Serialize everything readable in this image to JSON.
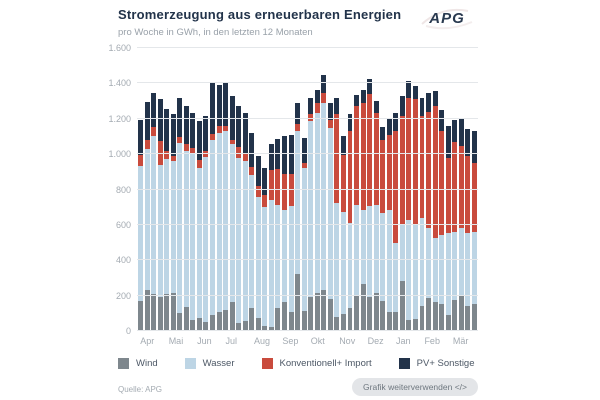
{
  "header": {
    "title": "Stromerzeugung aus erneuerbaren Energien",
    "subtitle": "pro Woche in GWh, in den letzten 12 Monaten",
    "logo_text": "APG"
  },
  "footer": {
    "source": "Quelle: APG",
    "reuse_button_label": "Grafik weiterverwenden </>"
  },
  "colors": {
    "title": "#22334a",
    "muted_text": "#a4abb2",
    "legend_text": "#4d5866",
    "gridline": "#e4e7ea",
    "button_bg": "#e3e5e8",
    "button_text": "#6e777f",
    "wind": "#7e878d",
    "wasser": "#bdd5e5",
    "konventionell": "#c94b3d",
    "pv": "#22334a"
  },
  "chart_data": {
    "type": "bar",
    "stacked": true,
    "title": "Stromerzeugung aus erneuerbaren Energien",
    "subtitle": "pro Woche in GWh, in den letzten 12 Monaten",
    "unit": "GWh pro Woche",
    "weeks": 52,
    "grid": true,
    "legend_position": "bottom",
    "ylim": [
      0,
      1600
    ],
    "ytick_step": 200,
    "ytick_labels": [
      "0",
      "200",
      "400",
      "600",
      "800",
      "1.000",
      "1.200",
      "1.400",
      "1.600"
    ],
    "x_months": [
      "Apr",
      "Mai",
      "Jun",
      "Jul",
      "Aug",
      "Sep",
      "Okt",
      "Nov",
      "Dez",
      "Jan",
      "Feb",
      "Mär"
    ],
    "series": [
      {
        "name": "Wind",
        "color": "#7e878d",
        "values": [
          170,
          230,
          210,
          195,
          210,
          215,
          100,
          135,
          60,
          75,
          50,
          90,
          105,
          120,
          165,
          45,
          55,
          130,
          75,
          30,
          25,
          130,
          165,
          110,
          325,
          115,
          195,
          215,
          230,
          180,
          80,
          95,
          130,
          205,
          265,
          190,
          215,
          170,
          110,
          110,
          280,
          60,
          70,
          140,
          185,
          165,
          155,
          90,
          175,
          205,
          140,
          150
        ]
      },
      {
        "name": "Wasser",
        "color": "#bdd5e5",
        "values": [
          765,
          800,
          890,
          745,
          760,
          745,
          965,
          880,
          945,
          845,
          935,
          990,
          1015,
          1010,
          890,
          935,
          905,
          750,
          685,
          670,
          715,
          585,
          520,
          595,
          805,
          805,
          990,
          1020,
          1060,
          970,
          645,
          580,
          480,
          510,
          420,
          515,
          500,
          495,
          575,
          390,
          320,
          570,
          530,
          500,
          395,
          360,
          390,
          465,
          385,
          375,
          415,
          410
        ]
      },
      {
        "name": "Konventionell+ Import",
        "color": "#c94b3d",
        "values": [
          60,
          50,
          55,
          135,
          50,
          30,
          30,
          40,
          30,
          45,
          30,
          35,
          40,
          30,
          25,
          60,
          40,
          50,
          60,
          70,
          170,
          200,
          200,
          185,
          40,
          30,
          40,
          55,
          55,
          45,
          500,
          320,
          520,
          555,
          605,
          635,
          520,
          415,
          425,
          630,
          615,
          690,
          710,
          575,
          660,
          745,
          585,
          425,
          510,
          465,
          435,
          390
        ]
      },
      {
        "name": "PV+ Sonstige",
        "color": "#22334a",
        "values": [
          200,
          215,
          190,
          235,
          235,
          235,
          225,
          215,
          200,
          220,
          200,
          290,
          230,
          240,
          250,
          230,
          235,
          190,
          170,
          150,
          145,
          170,
          215,
          220,
          120,
          140,
          95,
          70,
          105,
          95,
          90,
          105,
          95,
          65,
          75,
          85,
          65,
          75,
          95,
          105,
          115,
          95,
          75,
          105,
          105,
          85,
          120,
          180,
          125,
          155,
          150,
          180
        ]
      }
    ]
  }
}
